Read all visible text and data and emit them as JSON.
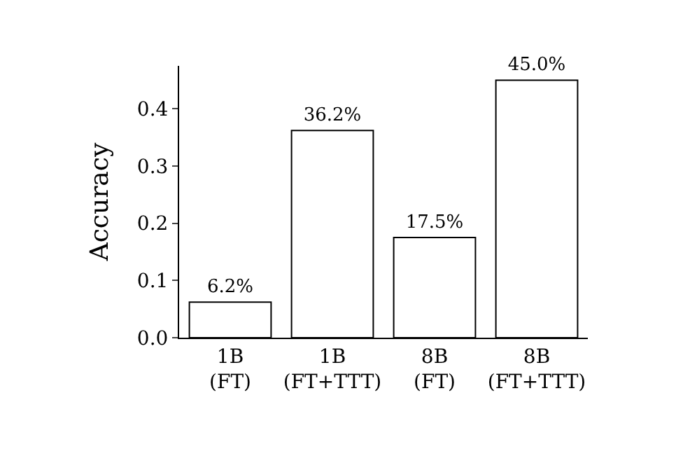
{
  "chart_data": {
    "type": "bar",
    "ylabel": "Accuracy",
    "categories": [
      "1B\n(FT)",
      "1B\n(FT+TTT)",
      "8B\n(FT)",
      "8B\n(FT+TTT)"
    ],
    "values": [
      0.062,
      0.362,
      0.175,
      0.45
    ],
    "value_labels": [
      "6.2%",
      "36.2%",
      "17.5%",
      "45.0%"
    ],
    "color": "#ffffff",
    "ylim": [
      0,
      0.475
    ],
    "yticks": [
      {
        "value": 0,
        "label": "0.0"
      },
      {
        "value": 0.1,
        "label": "0.1"
      },
      {
        "value": 0.2,
        "label": "0.2"
      },
      {
        "value": 0.3,
        "label": "0.3"
      },
      {
        "value": 0.4,
        "label": "0.4"
      }
    ],
    "legend": false
  }
}
